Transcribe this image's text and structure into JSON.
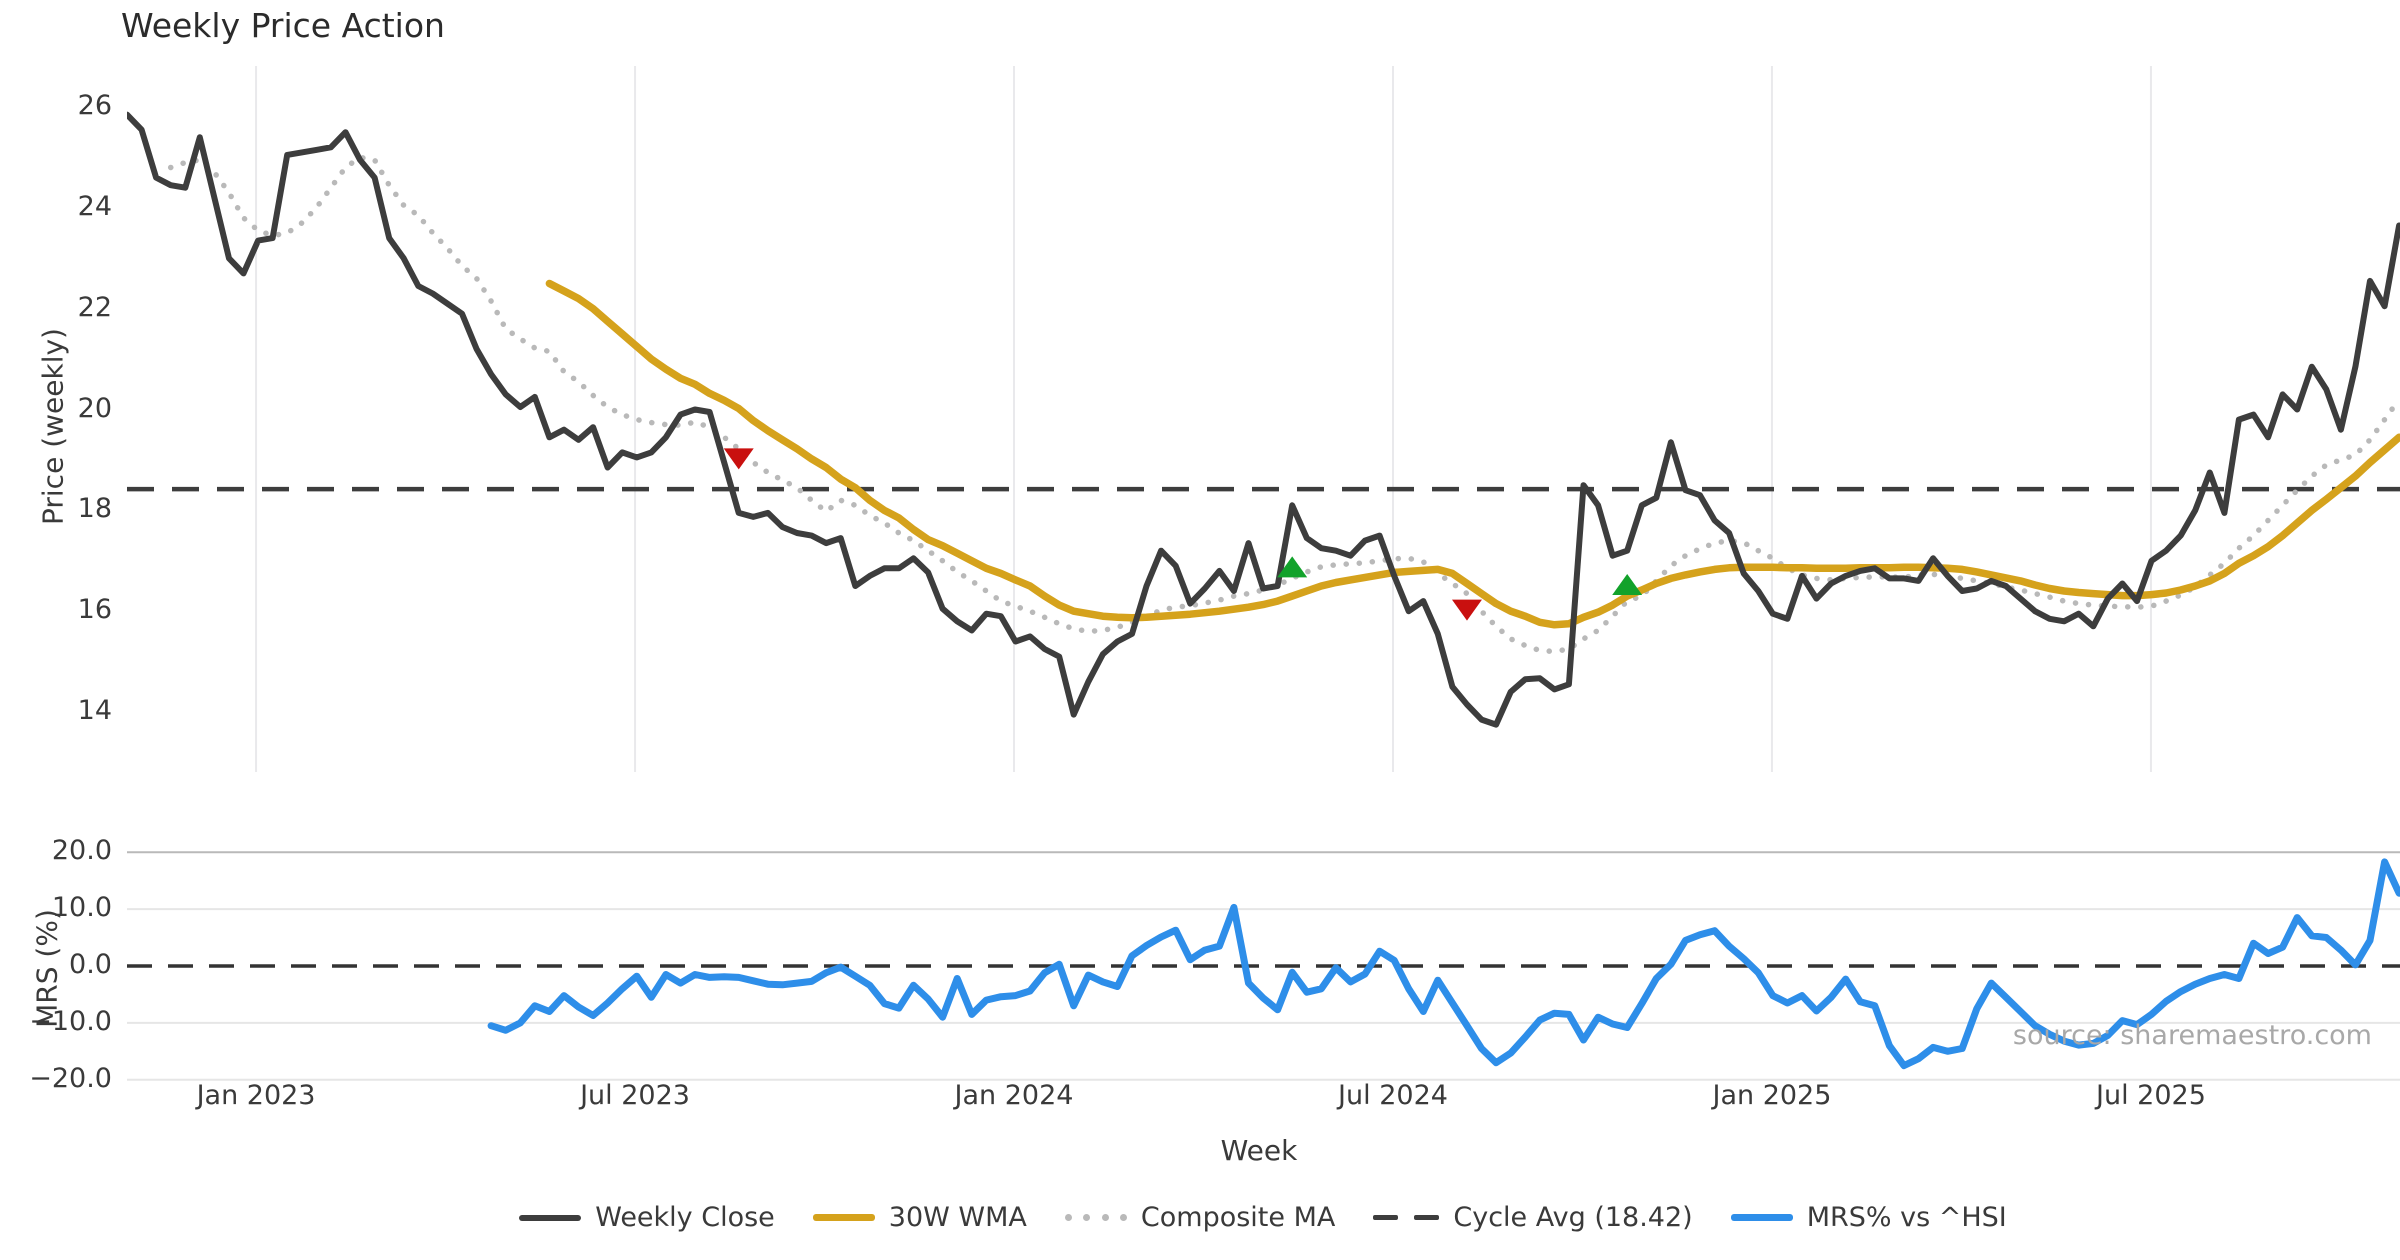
{
  "title": "Weekly Price Action",
  "source_note": "source: sharemaestro.com",
  "axes": {
    "price_label": "Price (weekly)",
    "mrs_label": "MRS (%)",
    "x_label": "Week"
  },
  "legend": {
    "items": [
      {
        "key": "close",
        "label": "Weekly Close"
      },
      {
        "key": "wma",
        "label": "30W WMA"
      },
      {
        "key": "composite",
        "label": "Composite MA"
      },
      {
        "key": "cycle",
        "label": "Cycle Avg (18.42)"
      },
      {
        "key": "mrs",
        "label": "MRS% vs ^HSI"
      }
    ]
  },
  "colors": {
    "close": "#3d3d3d",
    "wma": "#d5a21c",
    "composite": "#b9b9b9",
    "cycle_avg": "#3d3d3d",
    "mrs": "#2e8ee9",
    "buy": "#12a22b",
    "sell": "#c9100f",
    "grid_vertical": "#e9e9ec",
    "grid_horizontal": "#e6e6e6",
    "grid_top_spine": "#b9b9b9",
    "tick_text": "#3a3a3a"
  },
  "chart_data": [
    {
      "type": "line",
      "title": "Weekly Price Action",
      "xlabel": "",
      "ylabel": "Price (weekly)",
      "ylim": [
        12.8,
        26.8
      ],
      "grid": "vertical-only",
      "y_ticks": [
        26,
        24,
        22,
        20,
        18,
        16,
        14
      ],
      "y_tick_labels": [
        "26",
        "24",
        "22",
        "20",
        "18",
        "16",
        "14"
      ],
      "x_tick_labels": [
        "Jan 2023",
        "Jul 2023",
        "Jan 2024",
        "Jul 2024",
        "Jan 2025",
        "Jul 2025"
      ],
      "x_tick_weeks": [
        8.86,
        34.88,
        60.9,
        86.92,
        112.94,
        138.96
      ],
      "cycle_avg": 18.42,
      "series": [
        {
          "name": "Weekly Close",
          "start_week": 0,
          "values": [
            25.85,
            25.55,
            24.6,
            24.45,
            24.4,
            25.4,
            24.2,
            23.0,
            22.7,
            23.35,
            23.4,
            25.05,
            25.1,
            25.15,
            25.2,
            25.5,
            24.95,
            24.6,
            23.4,
            23.0,
            22.45,
            22.3,
            22.1,
            21.9,
            21.2,
            20.7,
            20.3,
            20.05,
            20.25,
            19.45,
            19.6,
            19.4,
            19.65,
            18.85,
            19.15,
            19.05,
            19.15,
            19.45,
            19.9,
            20.0,
            19.95,
            18.95,
            17.95,
            17.87,
            17.95,
            17.67,
            17.55,
            17.5,
            17.35,
            17.45,
            16.5,
            16.7,
            16.85,
            16.85,
            17.05,
            16.77,
            16.05,
            15.8,
            15.62,
            15.95,
            15.9,
            15.4,
            15.5,
            15.25,
            15.1,
            13.95,
            14.6,
            15.15,
            15.4,
            15.55,
            16.5,
            17.2,
            16.9,
            16.15,
            16.45,
            16.8,
            16.4,
            17.35,
            16.45,
            16.5,
            18.1,
            17.45,
            17.25,
            17.2,
            17.1,
            17.4,
            17.5,
            16.7,
            16.0,
            16.2,
            15.55,
            14.5,
            14.15,
            13.85,
            13.75,
            14.4,
            14.65,
            14.67,
            14.45,
            14.55,
            18.5,
            18.1,
            17.1,
            17.2,
            18.1,
            18.25,
            19.35,
            18.4,
            18.3,
            17.8,
            17.55,
            16.75,
            16.4,
            15.95,
            15.85,
            16.7,
            16.25,
            16.55,
            16.7,
            16.8,
            16.85,
            16.65,
            16.65,
            16.6,
            17.05,
            16.7,
            16.4,
            16.45,
            16.6,
            16.5,
            16.25,
            16.0,
            15.85,
            15.8,
            15.95,
            15.7,
            16.25,
            16.55,
            16.2,
            17.0,
            17.2,
            17.5,
            18.0,
            18.75,
            17.95,
            19.8,
            19.9,
            19.45,
            20.3,
            20.0,
            20.85,
            20.4,
            19.6,
            20.85,
            22.55,
            22.05,
            23.65
          ]
        },
        {
          "name": "30W WMA",
          "start_week": 29,
          "values": [
            22.5,
            22.35,
            22.2,
            22.0,
            21.75,
            21.5,
            21.25,
            21.0,
            20.8,
            20.62,
            20.5,
            20.32,
            20.18,
            20.02,
            19.78,
            19.58,
            19.4,
            19.22,
            19.02,
            18.85,
            18.62,
            18.45,
            18.2,
            18.0,
            17.85,
            17.62,
            17.42,
            17.3,
            17.15,
            17.0,
            16.85,
            16.75,
            16.62,
            16.5,
            16.3,
            16.12,
            16.0,
            15.95,
            15.9,
            15.88,
            15.87,
            15.88,
            15.9,
            15.92,
            15.94,
            15.97,
            16.0,
            16.04,
            16.08,
            16.13,
            16.2,
            16.3,
            16.4,
            16.5,
            16.57,
            16.62,
            16.67,
            16.72,
            16.77,
            16.79,
            16.81,
            16.83,
            16.75,
            16.55,
            16.35,
            16.15,
            16.0,
            15.9,
            15.78,
            15.73,
            15.75,
            15.88,
            15.98,
            16.12,
            16.3,
            16.42,
            16.55,
            16.65,
            16.72,
            16.78,
            16.83,
            16.86,
            16.87,
            16.87,
            16.87,
            16.86,
            16.86,
            16.85,
            16.85,
            16.85,
            16.86,
            16.86,
            16.86,
            16.87,
            16.87,
            16.86,
            16.85,
            16.83,
            16.78,
            16.72,
            16.66,
            16.6,
            16.52,
            16.45,
            16.4,
            16.37,
            16.35,
            16.33,
            16.31,
            16.31,
            16.33,
            16.36,
            16.42,
            16.5,
            16.6,
            16.75,
            16.95,
            17.1,
            17.28,
            17.5,
            17.75,
            18.0,
            18.22,
            18.45,
            18.68,
            18.95,
            19.2,
            19.45
          ]
        },
        {
          "name": "Composite MA",
          "start_week": 3,
          "values": [
            24.8,
            24.9,
            24.95,
            24.7,
            24.3,
            23.8,
            23.55,
            23.45,
            23.5,
            23.7,
            24.0,
            24.4,
            24.8,
            25.0,
            24.95,
            24.45,
            24.05,
            23.85,
            23.5,
            23.2,
            22.85,
            22.6,
            22.15,
            21.6,
            21.4,
            21.22,
            21.15,
            20.75,
            20.55,
            20.28,
            20.05,
            19.9,
            19.8,
            19.74,
            19.7,
            19.69,
            19.75,
            19.65,
            19.45,
            19.22,
            18.95,
            18.75,
            18.6,
            18.45,
            18.2,
            17.98,
            18.2,
            18.1,
            17.9,
            17.75,
            17.55,
            17.4,
            17.2,
            17.0,
            16.78,
            16.6,
            16.4,
            16.2,
            16.1,
            16.0,
            15.88,
            15.75,
            15.65,
            15.6,
            15.62,
            15.68,
            15.78,
            15.9,
            16.02,
            16.08,
            16.11,
            16.16,
            16.22,
            16.3,
            16.35,
            16.42,
            16.52,
            16.65,
            16.78,
            16.88,
            16.92,
            16.94,
            16.96,
            17.0,
            17.04,
            17.05,
            16.98,
            16.75,
            16.55,
            16.35,
            16.0,
            15.7,
            15.45,
            15.32,
            15.22,
            15.2,
            15.25,
            15.45,
            15.62,
            15.9,
            16.2,
            16.3,
            16.6,
            16.9,
            17.1,
            17.24,
            17.35,
            17.4,
            17.36,
            17.2,
            17.05,
            16.85,
            16.72,
            16.65,
            16.62,
            16.65,
            16.67,
            16.68,
            16.68,
            16.67,
            16.72,
            16.73,
            16.7,
            16.65,
            16.6,
            16.55,
            16.48,
            16.42,
            16.35,
            16.28,
            16.2,
            16.15,
            16.12,
            16.1,
            16.09,
            16.08,
            16.1,
            16.2,
            16.32,
            16.48,
            16.72,
            16.95,
            17.25,
            17.5,
            17.8,
            18.1,
            18.4,
            18.68,
            18.9,
            19.0,
            19.1,
            19.4,
            19.8,
            20.2
          ]
        }
      ],
      "markers": [
        {
          "type": "sell",
          "week": 42,
          "price": 19.05
        },
        {
          "type": "buy",
          "week": 80,
          "price": 16.85
        },
        {
          "type": "sell",
          "week": 92,
          "price": 16.05
        },
        {
          "type": "buy",
          "week": 103,
          "price": 16.5
        }
      ]
    },
    {
      "type": "line",
      "title": "",
      "xlabel": "Week",
      "ylabel": "MRS (%)",
      "ylim": [
        -21.8,
        20.0
      ],
      "grid": "horizontal-only",
      "y_ticks": [
        20,
        10,
        0,
        -10,
        -20
      ],
      "y_tick_labels": [
        "20.0",
        "10.0",
        "0.0",
        "−10.0",
        "−20.0"
      ],
      "zero_line": 0.0,
      "series": [
        {
          "name": "MRS% vs ^HSI",
          "start_week": 25,
          "values": [
            -10.5,
            -11.3,
            -10.0,
            -7.0,
            -8.0,
            -5.2,
            -7.2,
            -8.7,
            -6.5,
            -4.0,
            -1.8,
            -5.5,
            -1.5,
            -3.0,
            -1.5,
            -2.0,
            -1.9,
            -2.0,
            -2.6,
            -3.2,
            -3.3,
            -3.0,
            -2.7,
            -1.2,
            -0.2,
            -1.8,
            -3.4,
            -6.6,
            -7.4,
            -3.4,
            -5.8,
            -9.0,
            -2.2,
            -8.5,
            -6.0,
            -5.4,
            -5.2,
            -4.4,
            -1.2,
            0.3,
            -7.0,
            -1.6,
            -2.8,
            -3.6,
            1.8,
            3.6,
            5.1,
            6.3,
            1.1,
            2.8,
            3.5,
            10.3,
            -3.0,
            -5.6,
            -7.7,
            -1.1,
            -4.6,
            -4.0,
            -0.3,
            -2.8,
            -1.4,
            2.6,
            1.0,
            -4.0,
            -8.0,
            -2.5,
            -6.5,
            -10.5,
            -14.5,
            -17.0,
            -15.3,
            -12.5,
            -9.5,
            -8.3,
            -8.5,
            -13.0,
            -9.0,
            -10.2,
            -10.8,
            -6.6,
            -2.2,
            0.3,
            4.5,
            5.5,
            6.2,
            3.5,
            1.3,
            -1.2,
            -5.2,
            -6.5,
            -5.2,
            -7.9,
            -5.5,
            -2.3,
            -6.3,
            -7.0,
            -14.0,
            -17.5,
            -16.3,
            -14.3,
            -15.0,
            -14.5,
            -7.5,
            -3.0,
            -5.5,
            -8.0,
            -10.5,
            -12.0,
            -13.2,
            -13.9,
            -13.6,
            -12.2,
            -9.6,
            -10.3,
            -8.5,
            -6.2,
            -4.5,
            -3.2,
            -2.2,
            -1.5,
            -2.2,
            4.0,
            2.2,
            3.3,
            8.5,
            5.3,
            5.0,
            2.8,
            0.2,
            4.5,
            18.3,
            12.8
          ]
        }
      ]
    }
  ]
}
